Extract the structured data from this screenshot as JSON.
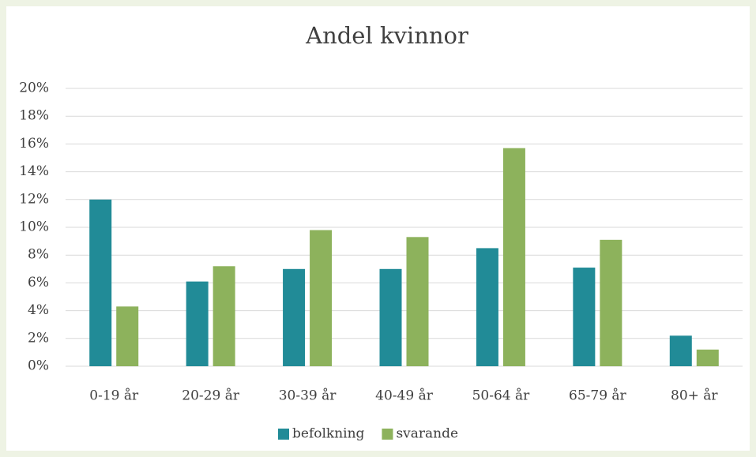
{
  "chart_data": {
    "type": "bar",
    "title": "Andel kvinnor",
    "categories": [
      "0-19 år",
      "20-29 år",
      "30-39 år",
      "40-49 år",
      "50-64 år",
      "65-79 år",
      "80+ år"
    ],
    "series": [
      {
        "name": "befolkning",
        "color": "#218b97",
        "values": [
          12.0,
          6.1,
          7.0,
          7.0,
          8.5,
          7.1,
          2.2
        ]
      },
      {
        "name": "svarande",
        "color": "#8db25c",
        "values": [
          4.3,
          7.2,
          9.8,
          9.3,
          15.7,
          9.1,
          1.2
        ]
      }
    ],
    "ylim": [
      0,
      20
    ],
    "yticks": [
      {
        "value": 0,
        "label": "0%"
      },
      {
        "value": 2,
        "label": "2%"
      },
      {
        "value": 4,
        "label": "4%"
      },
      {
        "value": 6,
        "label": "6%"
      },
      {
        "value": 8,
        "label": "8%"
      },
      {
        "value": 10,
        "label": "10%"
      },
      {
        "value": 12,
        "label": "12%"
      },
      {
        "value": 14,
        "label": "14%"
      },
      {
        "value": 16,
        "label": "16%"
      },
      {
        "value": 18,
        "label": "18%"
      },
      {
        "value": 20,
        "label": "20%"
      }
    ],
    "grid": true,
    "legend": "bottom"
  }
}
